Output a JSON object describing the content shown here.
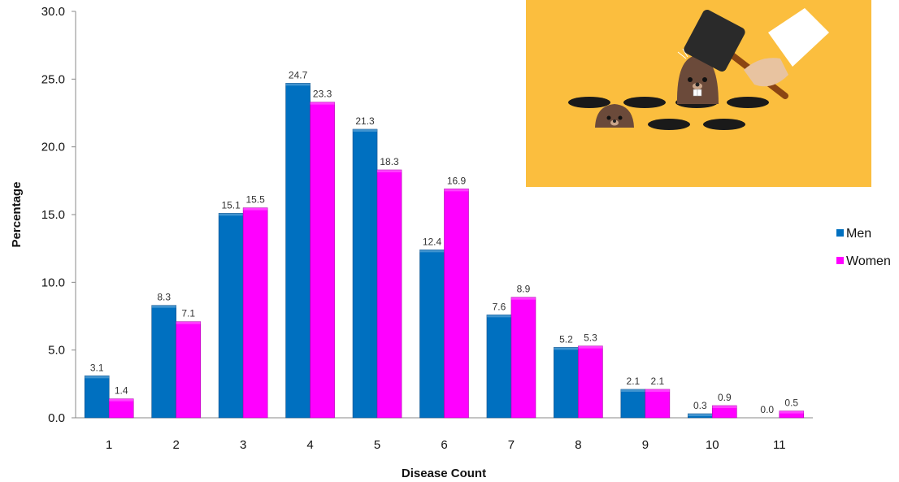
{
  "chart_data": {
    "type": "bar",
    "title": "",
    "xlabel": "Disease Count",
    "ylabel": "Percentage",
    "categories": [
      "1",
      "2",
      "3",
      "4",
      "5",
      "6",
      "7",
      "8",
      "9",
      "10",
      "11"
    ],
    "series": [
      {
        "name": "Men",
        "color": "#0070C0",
        "values": [
          3.1,
          8.3,
          15.1,
          24.7,
          21.3,
          12.4,
          7.6,
          5.2,
          2.1,
          0.3,
          0.0
        ]
      },
      {
        "name": "Women",
        "color": "#FF00FF",
        "values": [
          1.4,
          7.1,
          15.5,
          23.3,
          18.3,
          16.9,
          8.9,
          5.3,
          2.1,
          0.9,
          0.5
        ]
      }
    ],
    "ylim": [
      0,
      30
    ],
    "yticks": [
      "0.0",
      "5.0",
      "10.0",
      "15.0",
      "20.0",
      "25.0",
      "30.0"
    ],
    "grid": false,
    "legend_position": "right"
  },
  "illustration": {
    "description_icon": "whack-a-mole-icon",
    "background_color": "#FBBE3E"
  }
}
